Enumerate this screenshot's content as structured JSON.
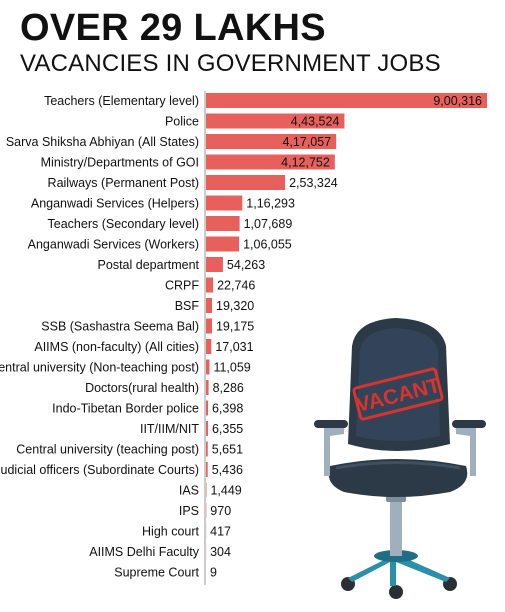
{
  "headline": "OVER 29 LAKHS",
  "subheadline": "VACANCIES IN GOVERNMENT JOBS",
  "stamp_text": "VACANT",
  "colors": {
    "bar": "#e8605c",
    "axis": "#9a9a9a",
    "text": "#111111",
    "stamp": "#d9342b",
    "chair_fabric": "#2c3a47",
    "chair_metal": "#9fb0bc",
    "chair_base": "#2a8fa8"
  },
  "chart_data": {
    "type": "bar",
    "orientation": "horizontal",
    "title": "OVER 29 LAKHS",
    "subtitle": "VACANCIES IN GOVERNMENT JOBS",
    "xlabel": "",
    "ylabel": "",
    "xlim": [
      0,
      900316
    ],
    "grid": false,
    "categories": [
      "Teachers (Elementary level)",
      "Police",
      "Sarva Shiksha Abhiyan (All States)",
      "Ministry/Departments of GOI",
      "Railways (Permanent Post)",
      "Anganwadi Services (Helpers)",
      "Teachers (Secondary level)",
      "Anganwadi Services (Workers)",
      "Postal department",
      "CRPF",
      "BSF",
      "SSB (Sashastra Seema Bal)",
      "AIIMS (non-faculty) (All cities)",
      "Central university (Non-teaching post)",
      "Doctors(rural health)",
      "Indo-Tibetan Border police",
      "IIT/IIM/NIT",
      "Central university (teaching post)",
      "Judicial officers (Subordinate Courts)",
      "IAS",
      "IPS",
      "High court",
      "AIIMS Delhi Faculty",
      "Supreme Court"
    ],
    "values": [
      900316,
      443524,
      417057,
      412752,
      253324,
      116293,
      107689,
      106055,
      54263,
      22746,
      19320,
      19175,
      17031,
      11059,
      8286,
      6398,
      6355,
      5651,
      5436,
      1449,
      970,
      417,
      304,
      9
    ],
    "value_labels": [
      "9,00,316",
      "4,43,524",
      "4,17,057",
      "4,12,752",
      "2,53,324",
      "1,16,293",
      "1,07,689",
      "1,06,055",
      "54,263",
      "22,746",
      "19,320",
      "19,175",
      "17,031",
      "11,059",
      "8,286",
      "6,398",
      "6,355",
      "5,651",
      "5,436",
      "1,449",
      "970",
      "417",
      "304",
      "9"
    ]
  }
}
